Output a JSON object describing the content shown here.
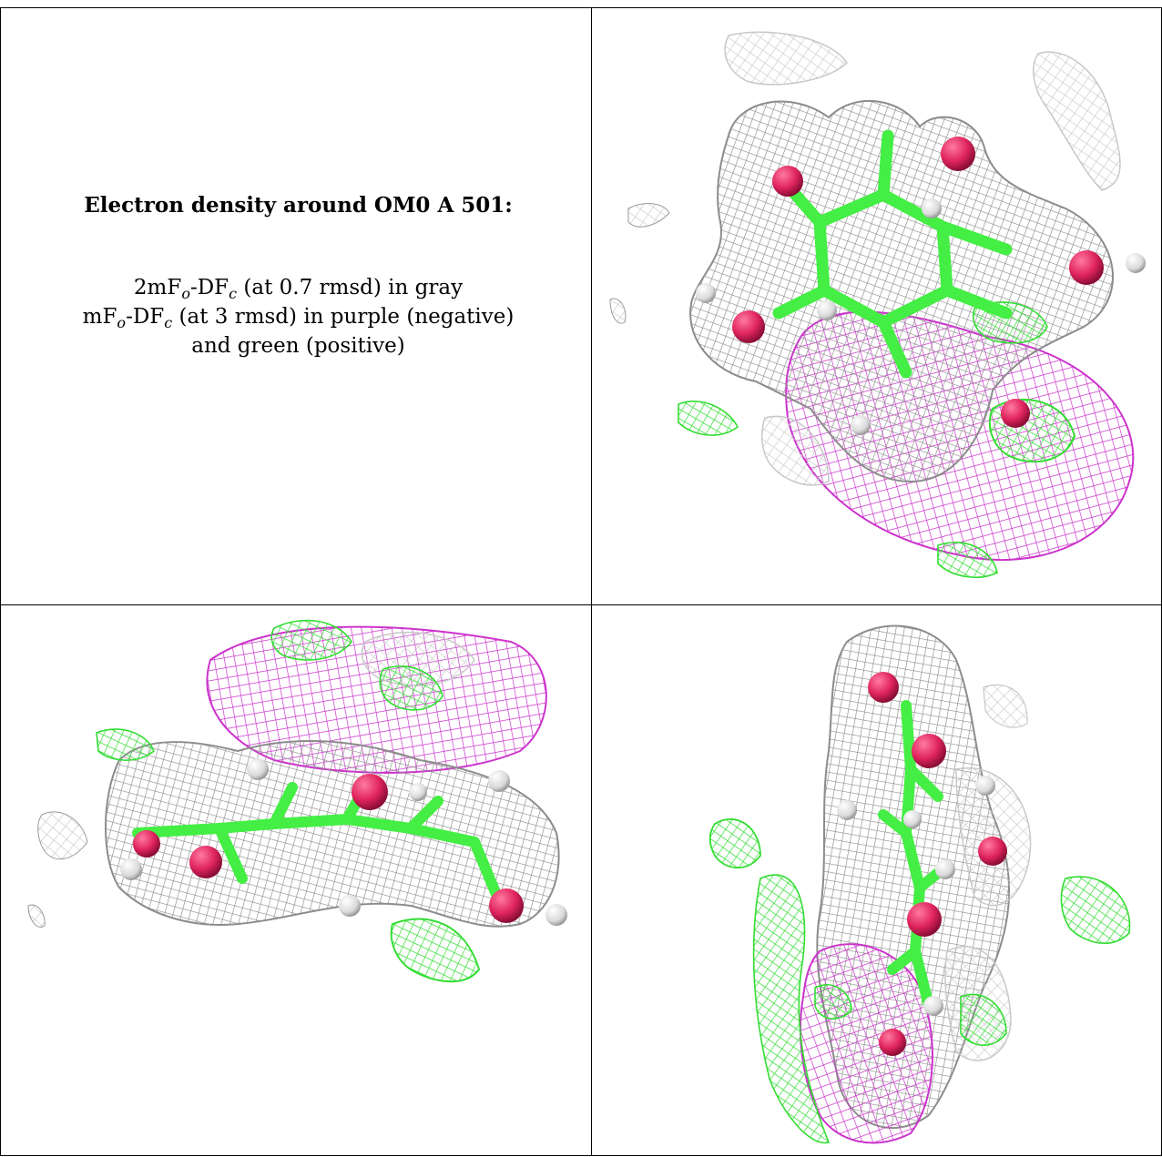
{
  "caption": {
    "title": "Electron density around OM0 A 501:",
    "line1": {
      "prefix": "2mF",
      "sub1": "o",
      "mid": "-DF",
      "sub2": "c",
      "suffix": " (at 0.7 rmsd) in gray"
    },
    "line2": {
      "prefix": "mF",
      "sub1": "o",
      "mid": "-DF",
      "sub2": "c",
      "suffix": " (at 3 rmsd) in purple (negative)"
    },
    "line3": "and green (positive)"
  },
  "colors": {
    "gray_mesh": "#8c8c8c",
    "light_mesh": "#c8c8c8",
    "purple_mesh": "#cc33cc",
    "green_mesh": "#33dd33",
    "carbon": "#44ee44",
    "oxygen": "#e0245e",
    "hydrogen": "#e6e6e6"
  },
  "panels": [
    {
      "view": "top-right"
    },
    {
      "view": "bottom-left"
    },
    {
      "view": "bottom-right"
    }
  ]
}
